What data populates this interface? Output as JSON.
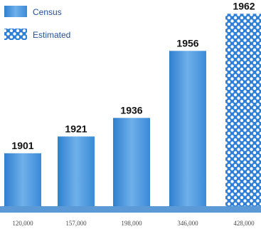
{
  "chart_data": {
    "type": "bar",
    "categories": [
      "1901",
      "1921",
      "1936",
      "1956",
      "1962"
    ],
    "values": [
      120000,
      157000,
      198000,
      346000,
      428000
    ],
    "value_labels": [
      "120,000",
      "157,000",
      "198,000",
      "346,000",
      "428,000"
    ],
    "kinds": [
      "Census",
      "Census",
      "Census",
      "Census",
      "Estimated"
    ],
    "legend": [
      {
        "name": "Census",
        "pattern": "solid"
      },
      {
        "name": "Estimated",
        "pattern": "dotted"
      }
    ],
    "legend_position": "top-left",
    "ylim": [
      0,
      430000
    ],
    "grid": false,
    "colors": {
      "bar": "#3d8fdb",
      "bar_light": "#6fb0ea",
      "axis": "#5b9ad6",
      "dots": "#ffffff"
    }
  }
}
